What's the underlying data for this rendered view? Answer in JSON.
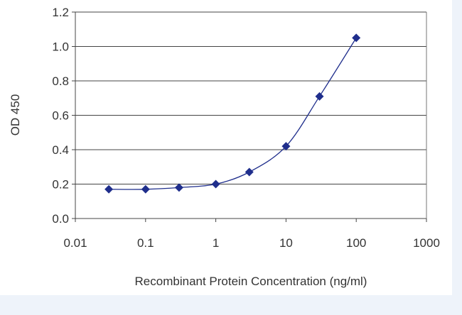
{
  "chart_data": {
    "type": "scatter",
    "title": "",
    "xlabel": "Recombinant Protein Concentration (ng/ml)",
    "ylabel": "OD 450",
    "x_scale": "log",
    "xlim": [
      0.01,
      1000
    ],
    "ylim": [
      0.0,
      1.2
    ],
    "x_ticks": [
      "0.01",
      "0.1",
      "1",
      "10",
      "100",
      "1000"
    ],
    "y_ticks": [
      "0.0",
      "0.2",
      "0.4",
      "0.6",
      "0.8",
      "1.0",
      "1.2"
    ],
    "grid": "horizontal",
    "legend": "none",
    "series": [
      {
        "x": [
          0.03,
          0.1,
          0.3,
          1,
          3,
          10,
          30,
          100
        ],
        "y": [
          0.17,
          0.17,
          0.18,
          0.2,
          0.27,
          0.42,
          0.71,
          1.05
        ],
        "fit_curve": true
      }
    ],
    "colors": {
      "series": "#1f2e8c",
      "plot_background": "#ffffff",
      "gridline": "#444444",
      "page_band": "#eef3fa"
    }
  }
}
